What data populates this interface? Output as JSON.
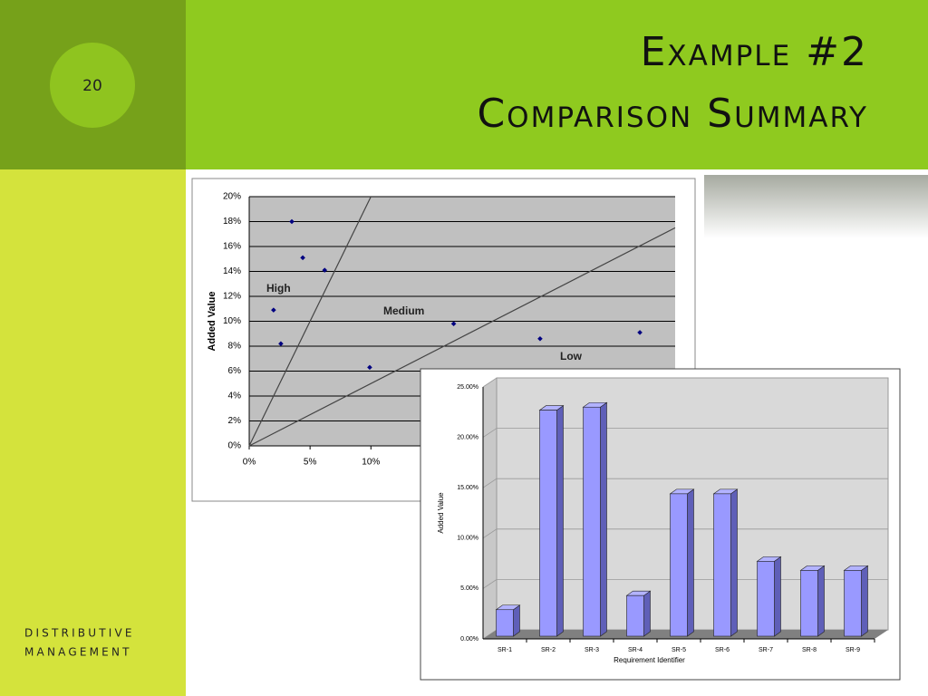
{
  "slide": {
    "number": "20",
    "title": [
      "Example #2",
      "Comparison Summary"
    ],
    "footer": [
      "DISTRIBUTIVE",
      "MANAGEMENT"
    ]
  },
  "chart_data": [
    {
      "type": "scatter",
      "y_label": "Added Value",
      "x": [
        3.5,
        4.4,
        6.2,
        2.0,
        2.6,
        9.9,
        16.8,
        23.9,
        32.1
      ],
      "values": [
        18.0,
        15.1,
        14.1,
        10.9,
        8.2,
        6.3,
        9.8,
        8.6,
        9.1
      ],
      "color": "#000080",
      "reference_lines": [
        {
          "slope": 2
        },
        {
          "slope": 0.5
        }
      ],
      "annotations": [
        "High",
        "Medium",
        "Low"
      ],
      "xlim": [
        0,
        35
      ],
      "xticks": [
        {
          "value": 0,
          "label": "0%"
        },
        {
          "value": 5,
          "label": "5%"
        },
        {
          "value": 10,
          "label": "10%"
        }
      ],
      "ylim": [
        0,
        20
      ],
      "yticks": [
        {
          "value": 0,
          "label": "0%"
        },
        {
          "value": 2,
          "label": "2%"
        },
        {
          "value": 4,
          "label": "4%"
        },
        {
          "value": 6,
          "label": "6%"
        },
        {
          "value": 8,
          "label": "8%"
        },
        {
          "value": 10,
          "label": "10%"
        },
        {
          "value": 12,
          "label": "12%"
        },
        {
          "value": 14,
          "label": "14%"
        },
        {
          "value": 16,
          "label": "16%"
        },
        {
          "value": 18,
          "label": "18%"
        },
        {
          "value": 20,
          "label": "20%"
        }
      ],
      "grid": true
    },
    {
      "type": "bar",
      "x_label": "Requirement Identifier",
      "y_label": "Added Value",
      "categories": [
        "SR-1",
        "SR-2",
        "SR-3",
        "SR-4",
        "SR-5",
        "SR-6",
        "SR-7",
        "SR-8",
        "SR-9"
      ],
      "values": [
        2.9,
        22.7,
        23.0,
        4.3,
        14.4,
        14.4,
        7.7,
        6.8,
        6.8
      ],
      "color": "#9999ff",
      "ylim": [
        0,
        25
      ],
      "yticks": [
        {
          "value": 0,
          "label": "0.00%"
        },
        {
          "value": 5,
          "label": "5.00%"
        },
        {
          "value": 10,
          "label": "10.00%"
        },
        {
          "value": 15,
          "label": "15.00%"
        },
        {
          "value": 20,
          "label": "20.00%"
        },
        {
          "value": 25,
          "label": "25.00%"
        }
      ],
      "grid": true
    }
  ]
}
